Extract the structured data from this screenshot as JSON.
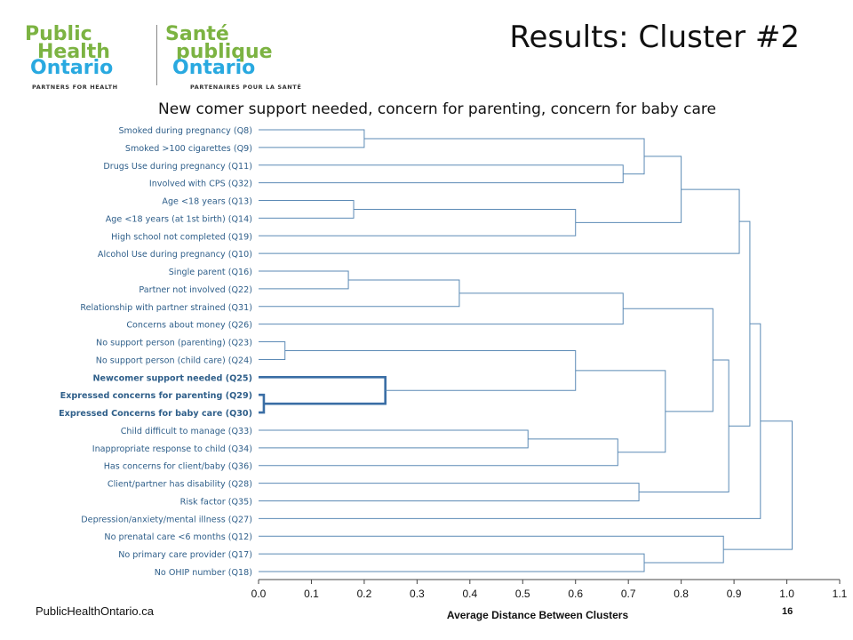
{
  "header": {
    "title": "Results: Cluster #2",
    "logo": {
      "en_line1": "Public",
      "en_line2": "Health",
      "en_line3": "Ontario",
      "en_tag": "PARTNERS FOR HEALTH",
      "fr_line1": "Santé",
      "fr_line2": "publique",
      "fr_line3": "Ontario",
      "fr_tag": "PARTENAIRES POUR LA SANTÉ"
    }
  },
  "footer": {
    "url": "PublicHealthOntario.ca",
    "page": "16"
  },
  "colors": {
    "line": "#5b8ab5",
    "label": "#2f5f8a",
    "highlight": "#3a6ea5",
    "logo_green": "#7cb342",
    "logo_blue": "#29a9e0"
  },
  "chart_data": {
    "type": "dendrogram",
    "title": "New comer support needed, concern for parenting, concern for baby care",
    "xlabel": "Average Distance Between Clusters",
    "xlim": [
      0.0,
      1.1
    ],
    "xticks": [
      "0.0",
      "0.1",
      "0.2",
      "0.3",
      "0.4",
      "0.5",
      "0.6",
      "0.7",
      "0.8",
      "0.9",
      "1.0",
      "1.1"
    ],
    "leaves": [
      "Smoked during pregnancy (Q8)",
      "Smoked >100 cigarettes (Q9)",
      "Drugs Use during pregnancy (Q11)",
      "Involved with CPS (Q32)",
      "Age <18 years (Q13)",
      "Age <18 years (at 1st birth) (Q14)",
      "High school not completed (Q19)",
      "Alcohol Use during pregnancy (Q10)",
      "Single parent (Q16)",
      "Partner not involved (Q22)",
      "Relationship with partner strained (Q31)",
      "Concerns about money (Q26)",
      "No support person (parenting) (Q23)",
      "No support person (child care) (Q24)",
      "Newcomer support needed (Q25)",
      "Expressed concerns for parenting (Q29)",
      "Expressed Concerns for baby care (Q30)",
      "Child difficult to manage (Q33)",
      "Inappropriate response to child (Q34)",
      "Has concerns for client/baby (Q36)",
      "Client/partner has disability (Q28)",
      "Risk factor (Q35)",
      "Depression/anxiety/mental illness (Q27)",
      "No prenatal care <6 months (Q12)",
      "No primary care provider (Q17)",
      "No OHIP number (Q18)"
    ],
    "highlighted_leaves": [
      14,
      15,
      16
    ],
    "merges": [
      {
        "a": "L15",
        "b": "L16",
        "h": 0.01
      },
      {
        "a": "L12",
        "b": "L13",
        "h": 0.05
      },
      {
        "a": "L9",
        "b": "L8",
        "h": 0.17
      },
      {
        "a": "L4",
        "b": "L5",
        "h": 0.18
      },
      {
        "a": "L0",
        "b": "L1",
        "h": 0.2
      },
      {
        "a": "L14",
        "b": "M0",
        "h": 0.24
      },
      {
        "a": "M2",
        "b": "L10",
        "h": 0.38
      },
      {
        "a": "L17",
        "b": "L18",
        "h": 0.51
      },
      {
        "a": "M3",
        "b": "L6",
        "h": 0.6
      },
      {
        "a": "M1",
        "b": "M5",
        "h": 0.6
      },
      {
        "a": "M7",
        "b": "L19",
        "h": 0.68
      },
      {
        "a": "L2",
        "b": "L3",
        "h": 0.69
      },
      {
        "a": "M6",
        "b": "L11",
        "h": 0.69
      },
      {
        "a": "L20",
        "b": "L21",
        "h": 0.72
      },
      {
        "a": "M4",
        "b": "M11",
        "h": 0.73
      },
      {
        "a": "L24",
        "b": "L25",
        "h": 0.73
      },
      {
        "a": "M9",
        "b": "M10",
        "h": 0.77
      },
      {
        "a": "M14",
        "b": "M8",
        "h": 0.8
      },
      {
        "a": "M12",
        "b": "M16",
        "h": 0.86
      },
      {
        "a": "L23",
        "b": "M15",
        "h": 0.88
      },
      {
        "a": "M18",
        "b": "M13",
        "h": 0.89
      },
      {
        "a": "M17",
        "b": "L7",
        "h": 0.91
      },
      {
        "a": "M21",
        "b": "M20",
        "h": 0.93
      },
      {
        "a": "M22",
        "b": "L22",
        "h": 0.95
      },
      {
        "a": "M23",
        "b": "M19",
        "h": 1.01
      }
    ]
  }
}
